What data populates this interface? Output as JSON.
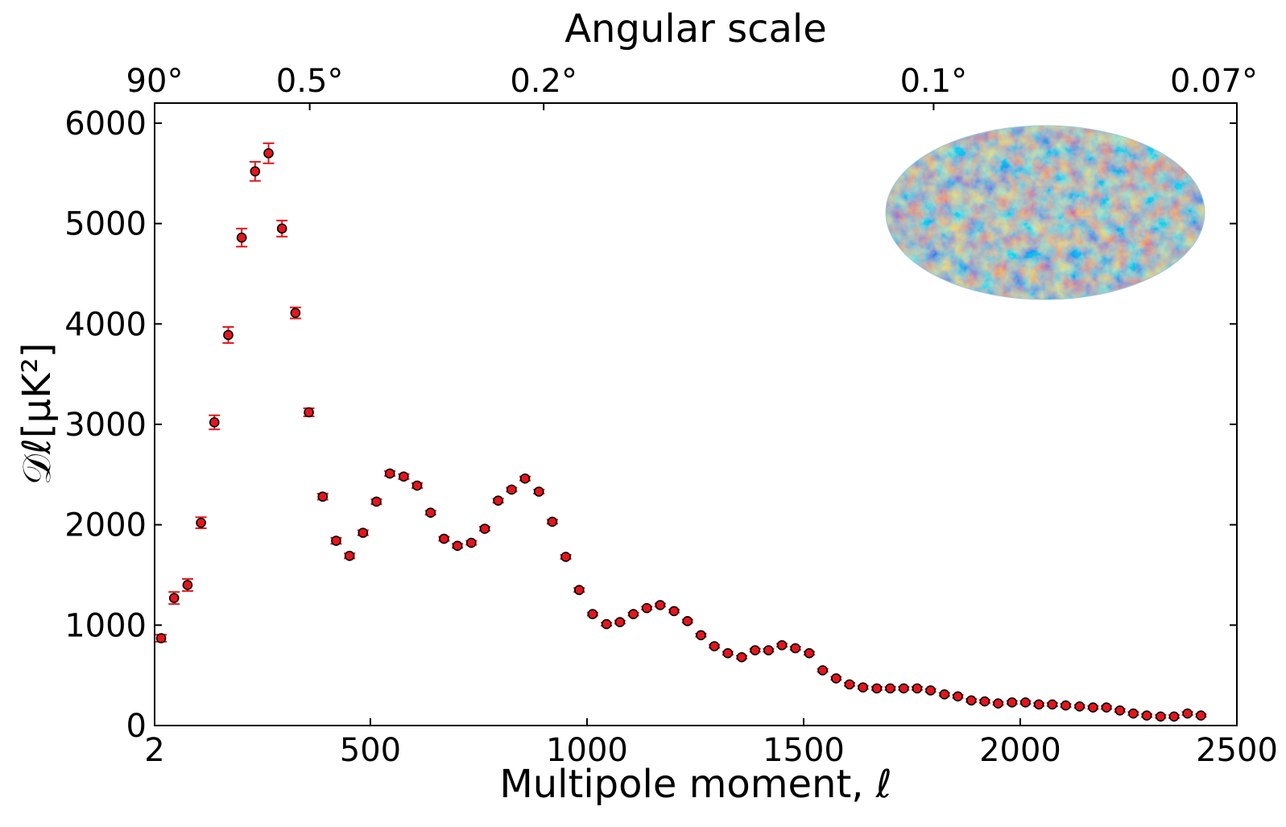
{
  "chart_data": {
    "type": "scatter",
    "title": "",
    "xlabel": "Multipole moment, ℓ",
    "ylabel": "𝒟ℓ[μK²]",
    "top_axis_label": "Angular scale",
    "top_tick_labels": [
      "90°",
      "0.5°",
      "0.2°",
      "0.1°",
      "0.07°"
    ],
    "top_tick_positions_ell": [
      2,
      360,
      900,
      1800,
      2500
    ],
    "x_ticks": [
      2,
      500,
      1000,
      1500,
      2000,
      2500
    ],
    "x_tick_labels": [
      "2",
      "500",
      "1000",
      "1500",
      "2000",
      "2500"
    ],
    "y_ticks": [
      0,
      1000,
      2000,
      3000,
      4000,
      5000,
      6000
    ],
    "y_tick_labels": [
      "0",
      "1000",
      "2000",
      "3000",
      "4000",
      "5000",
      "6000"
    ],
    "xlim": [
      2,
      2500
    ],
    "ylim": [
      0,
      6200
    ],
    "grid": false,
    "marker_color": "#e8141b",
    "errorbar_color": "#e8141b",
    "inset": "cmb-sky-map-icon",
    "series": [
      {
        "x": [
          17,
          47,
          78,
          109,
          140,
          172,
          203,
          234,
          265,
          296,
          327,
          358,
          390,
          421,
          452,
          483,
          514,
          545,
          577,
          608,
          639,
          670,
          701,
          733,
          764,
          795,
          826,
          857,
          889,
          920,
          951,
          982,
          1013,
          1045,
          1076,
          1107,
          1138,
          1169,
          1201,
          1232,
          1263,
          1294,
          1325,
          1357,
          1388,
          1419,
          1450,
          1481,
          1513,
          1544,
          1575,
          1606,
          1637,
          1669,
          1700,
          1731,
          1762,
          1793,
          1825,
          1856,
          1887,
          1918,
          1949,
          1981,
          2012,
          2043,
          2074,
          2105,
          2137,
          2168,
          2199,
          2230,
          2261,
          2292,
          2324,
          2355,
          2386,
          2417
        ],
        "y": [
          870,
          1270,
          1400,
          2020,
          3020,
          3890,
          4860,
          5520,
          5700,
          4950,
          4110,
          3120,
          2280,
          1840,
          1690,
          1920,
          2230,
          2510,
          2480,
          2390,
          2120,
          1860,
          1790,
          1820,
          1960,
          2240,
          2350,
          2460,
          2330,
          2030,
          1680,
          1350,
          1110,
          1010,
          1030,
          1110,
          1170,
          1200,
          1140,
          1040,
          900,
          790,
          720,
          680,
          750,
          750,
          800,
          770,
          720,
          550,
          470,
          410,
          380,
          370,
          370,
          370,
          370,
          350,
          310,
          290,
          250,
          240,
          220,
          230,
          230,
          210,
          210,
          200,
          190,
          180,
          180,
          150,
          120,
          100,
          90,
          90,
          120,
          100
        ],
        "yerr": [
          35,
          60,
          60,
          55,
          70,
          80,
          90,
          95,
          100,
          80,
          55,
          40,
          30,
          30,
          25,
          25,
          25,
          25,
          25,
          25,
          20,
          20,
          20,
          20,
          20,
          20,
          20,
          20,
          20,
          20,
          20,
          20,
          15,
          15,
          15,
          15,
          15,
          15,
          15,
          15,
          15,
          15,
          15,
          15,
          15,
          15,
          15,
          15,
          15,
          15,
          15,
          15,
          15,
          15,
          15,
          15,
          15,
          15,
          15,
          15,
          15,
          15,
          15,
          15,
          15,
          15,
          15,
          15,
          15,
          15,
          15,
          15,
          15,
          15,
          15,
          15,
          15,
          15
        ]
      }
    ]
  }
}
